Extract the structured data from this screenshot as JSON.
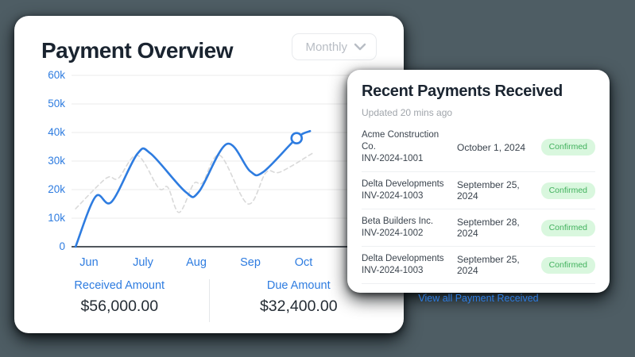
{
  "colors": {
    "background": "#4e5d64",
    "accent_blue": "#2e7ce0",
    "dashed_gray": "#d9d9d9",
    "grid": "#efefef",
    "axis": "#51575d",
    "badge_bg": "#d9f7de",
    "badge_text": "#41b15d"
  },
  "payment_overview": {
    "title": "Payment Overview",
    "period_selector": {
      "value": "Monthly"
    },
    "stats": [
      {
        "label": "Received Amount",
        "value": "$56,000.00"
      },
      {
        "label": "Due Amount",
        "value": "$32,400.00"
      }
    ]
  },
  "chart_data": {
    "type": "line",
    "title": "Payment Overview",
    "categories": [
      "Jun",
      "July",
      "Aug",
      "Sep",
      "Oct"
    ],
    "yticks": [
      "60k",
      "50k",
      "40k",
      "30k",
      "20k",
      "10k",
      "0"
    ],
    "ylim": [
      0,
      60
    ],
    "y_unit": "thousands of dollars",
    "grid": true,
    "legend": "none",
    "series": [
      {
        "id": "comparison",
        "style": "dashed",
        "color": "#d9d9d9",
        "points": [
          [
            -0.25,
            13.3
          ],
          [
            0.2,
            22
          ],
          [
            0.38,
            24.5
          ],
          [
            0.55,
            24
          ],
          [
            0.9,
            32
          ],
          [
            1.3,
            20.5
          ],
          [
            1.47,
            20.8
          ],
          [
            1.68,
            12
          ],
          [
            1.95,
            22
          ],
          [
            2.12,
            22.5
          ],
          [
            2.44,
            32
          ],
          [
            2.96,
            15
          ],
          [
            3.3,
            26
          ],
          [
            3.57,
            26.2
          ],
          [
            4.19,
            33
          ]
        ]
      },
      {
        "id": "received",
        "style": "solid",
        "color": "#2e7ce0",
        "points": [
          [
            -0.25,
            0
          ],
          [
            0.12,
            17.5
          ],
          [
            0.42,
            15.7
          ],
          [
            0.9,
            32.5
          ],
          [
            1.15,
            32.6
          ],
          [
            1.8,
            19.2
          ],
          [
            2.05,
            19.3
          ],
          [
            2.57,
            36
          ],
          [
            3.0,
            26.5
          ],
          [
            3.25,
            26.2
          ],
          [
            3.87,
            38
          ],
          [
            4.12,
            40.5
          ]
        ]
      }
    ],
    "marker": {
      "series": "received",
      "x": 3.87,
      "y": 38
    }
  },
  "recent_payments": {
    "title": "Recent Payments Received",
    "updated": "Updated 20 mins ago",
    "rows": [
      {
        "company": "Acme Construction Co.",
        "invoice": "INV-2024-1001",
        "date": "October 1, 2024",
        "status": "Confirmed"
      },
      {
        "company": "Delta Developments",
        "invoice": "INV-2024-1003",
        "date": "September 25, 2024",
        "status": "Confirmed"
      },
      {
        "company": "Beta Builders Inc.",
        "invoice": "INV-2024-1002",
        "date": "September 28, 2024",
        "status": "Confirmed"
      },
      {
        "company": "Delta Developments",
        "invoice": "INV-2024-1003",
        "date": "September 25, 2024",
        "status": "Confirmed"
      }
    ],
    "view_all": "View all Payment Received"
  }
}
